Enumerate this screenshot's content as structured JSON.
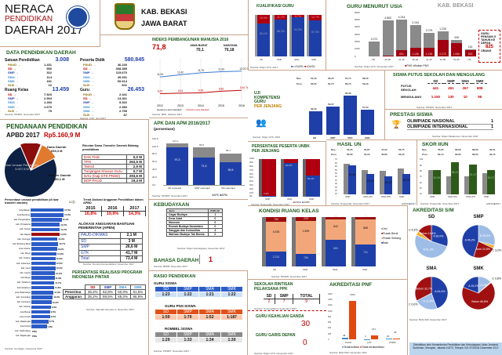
{
  "header": {
    "title1": "NERACA",
    "title2": "PENDIDIKAN",
    "title3": "DAERAH 2017",
    "region1": "KAB. BEKASI",
    "region2": "JAWA BARAT"
  },
  "data_pendidikan": {
    "title": "DATA PENDIDIKAN DAERAH",
    "satuan": {
      "label": "Satuan Pendidikan",
      "total": "3.008",
      "items": [
        [
          "PAUD →",
          "1.431"
        ],
        [
          "SD →",
          "950"
        ],
        [
          "SMP →",
          "322"
        ],
        [
          "SMA →",
          "114"
        ],
        [
          "SMK →",
          "181"
        ],
        [
          "SLB →",
          "10"
        ]
      ]
    },
    "peserta": {
      "label": "Peserta Didik",
      "total": "580.845",
      "items": [
        [
          "PAUD →",
          "46.240"
        ],
        [
          "SD →",
          "308.389"
        ],
        [
          "SMP →",
          "115.670"
        ],
        [
          "SMA →",
          "49.331"
        ],
        [
          "SMK →",
          "60.614"
        ],
        [
          "SLB →",
          "601"
        ]
      ]
    },
    "ruang": {
      "label": "Ruang Kelas",
      "total": "13.459",
      "items": [
        [
          "SD →",
          "7.523"
        ],
        [
          "SMP →",
          "2.904"
        ],
        [
          "SMA →",
          "1.283"
        ],
        [
          "SMK →",
          "1.670"
        ],
        [
          "SLB →",
          "79"
        ]
      ],
      "source": "Sumber: PDSPK, November 2017"
    },
    "guru": {
      "label": "Guru",
      "total": "26.453",
      "items": [
        [
          "PAUD →",
          "2.441"
        ],
        [
          "SD →",
          "13.461"
        ],
        [
          "SMP →",
          "5.322"
        ],
        [
          "SMA →",
          "2.383"
        ],
        [
          "SMK →",
          "2.759"
        ],
        [
          "SLB →",
          "87"
        ]
      ],
      "source": "Sumber: GTK, Juni 2017"
    }
  },
  "pendanaan": {
    "title": "PENDANAAN PENDIDIKAN",
    "apbd_label": "APBD 2017",
    "apbd_value": "Rp5.160,9 M",
    "pie": [
      {
        "label": "Non Urusan Pendidikan",
        "value": "3.927,5 M",
        "num": 3927.5,
        "color": "#0d2145"
      },
      {
        "label": "Dana Daerah",
        "value": "653,3 M",
        "num": 653.3,
        "color": "#8b0d0d"
      },
      {
        "label": "Transfer Daerah",
        "value": "580,1 M",
        "num": 580.1,
        "color": "#e07a2e"
      }
    ],
    "rincian_title": "Rincian Dana Transfer Daerah Bidang pendidikan",
    "rincian": [
      [
        "DAK Fisik",
        "0,0 M"
      ],
      [
        "TPG",
        "263,5 M"
      ],
      [
        "Tamsil",
        "2,9 M"
      ],
      [
        "Tunjangan Khusus Guru",
        "0,7 M"
      ],
      [
        "DAU (Gaji GTK PNSD)",
        "293,6 M"
      ],
      [
        "BOP PAUD",
        "19,4 M"
      ]
    ],
    "persentase_title": "Persentase urusan pendidikan (di luar transfer daerah)",
    "persentase": [
      [
        "kota Bekasi",
        17.5
      ],
      [
        "kota Bandung",
        17.3
      ],
      [
        "kab. Pangandaran",
        15.4
      ],
      [
        "kab. Purwakarta",
        14.5
      ],
      [
        "kab. Cianjur",
        14.5
      ],
      [
        "kab. Bekasi",
        14.3
      ],
      [
        "kab. Kuningan",
        13.3
      ],
      [
        "kab. Bandung Barat",
        13.7
      ],
      [
        "kota Cirebon",
        13.0
      ],
      [
        "kab. Bogor",
        12.8
      ],
      [
        "kab. Cirebon",
        12.3
      ],
      [
        "kab. Indramayu",
        12.3
      ],
      [
        "kab. Garut",
        12.3
      ],
      [
        "kab. Ciamis",
        12.0
      ],
      [
        "kota Bogor",
        11.8
      ],
      [
        "kab. Sukabumi",
        11.7
      ],
      [
        "kota Sukabumi",
        11.6
      ],
      [
        "kota Tasikmalaya",
        11.3
      ],
      [
        "kab. Sumedang",
        10.9
      ],
      [
        "kab. Karawang",
        10.3
      ],
      [
        "kab. Subang",
        9.9
      ],
      [
        "kota Banjar",
        9.5
      ],
      [
        "kota Cimahi",
        9.5
      ],
      [
        "kab. Majalengka",
        8.7
      ],
      [
        "kota Depok",
        7.8
      ],
      [
        "kab. Tasikmalaya",
        "PRG"
      ],
      [
        "kab. Majalengka",
        "PRG"
      ]
    ],
    "persentase_source": "Sumber: Kemdagri, November 2017",
    "trend_title": "Trend Alokasi Anggaran Pendidikan dalam APBD",
    "trend": [
      [
        "2015",
        "16,8%"
      ],
      [
        "2016",
        "19,9%"
      ],
      [
        "2017",
        "14,3%"
      ]
    ],
    "bantuan_title": "ALOKASI ANGGARAN BANTUAN PEMERINTAH (APBN)",
    "bantuan": [
      [
        "PAUD-DIKMAS",
        "2,1 M"
      ],
      [
        "SD",
        "3 M"
      ],
      [
        "SMP",
        "26,6 M"
      ],
      [
        "GTK",
        "41,7 M"
      ],
      [
        "Total",
        "73,4 M"
      ]
    ],
    "bantuan_source": "Sumber: Renstra Kemendikbud, November 2017",
    "pip_title": "PERSENTASE REALISASI PROGRAM INDONESIA PINTAR",
    "pip_head": [
      "SD",
      "SMP",
      "SMA",
      "SMK"
    ],
    "pip": [
      [
        "Penerima",
        "35,2%",
        "52,8%",
        "60,0%",
        "61,5%"
      ],
      [
        "Anggaran",
        "35,2%",
        "59,5%",
        "65,0%",
        "66,8%"
      ]
    ],
    "pip_source": "Sumber: dapodik semester 2, Desember 2017"
  },
  "ipm": {
    "title": "INDEKS PEMBANGUNAN MANUSIA 2016",
    "value": "71,8",
    "jabar_label": "JAWA BARAT",
    "jabar": "70,1",
    "nas_label": "NASIONAL",
    "nas": "70,18",
    "years": [
      "2012",
      "2013",
      "2014",
      "2015",
      "2016"
    ],
    "harapan": [
      11.05,
      11.42,
      11.75,
      11.93,
      12.03
    ],
    "harapan_labels": [
      "11,05",
      "11,42",
      "11,75",
      "11,93",
      "12,03 Tahun"
    ],
    "rerata": [
      8.25,
      8.34,
      8.38,
      8.66,
      8.81
    ],
    "rerata_labels": [
      "8,25",
      "8,34",
      "8,38",
      "8,66",
      "8,81 Tahun"
    ],
    "legend": [
      "Harapan Lama Sekolah",
      "Rerata Lama Sekolah"
    ],
    "source": "Sumber: BPS, Oktober 2017"
  },
  "apk": {
    "title": "APK DAN APM 2016/2017",
    "subtitle": "(persentase)",
    "categories": [
      "SD sederajat",
      "SMP sederajat",
      "SM sederajat"
    ],
    "apk": [
      107.1,
      96.8,
      82.4
    ],
    "apm": [
      97.3,
      71.9,
      59.5
    ],
    "apk_labels": [
      "107,1",
      "96,8",
      "82,4"
    ],
    "apm_labels": [
      "97,3",
      "71,9",
      "59,5"
    ],
    "ticks": [
      "0,0",
      "20,0",
      "40,0",
      "60,0",
      "80,0",
      "100,0",
      "120,0"
    ],
    "legend": [
      "APK",
      "APM"
    ],
    "source": "Sumber: PDSPK, November 2017"
  },
  "kebudayaan": {
    "title": "KEBUDAYAAN",
    "head": [
      "Jenis",
      "JUMLAH"
    ],
    "rows": [
      [
        "Cagar Budaya",
        "1"
      ],
      [
        "Desa Adat",
        "0"
      ],
      [
        "Museum",
        "0"
      ],
      [
        "Rumah Budaya Nusantara",
        "0"
      ],
      [
        "Sanggar dan Komunitas",
        "4"
      ],
      [
        "Warisan Budaya Tak Benda",
        "0"
      ]
    ],
    "source": "Sumber: Ditjen Kebudayaan, November 2017"
  },
  "bahasa": {
    "title": "BAHASA DAERAH",
    "value": "1",
    "source": "Sumber: BPPB, November 2017"
  },
  "rasio": {
    "title": "RASIO PENDIDIKAN",
    "head": [
      "SD",
      "SMP",
      "SMA",
      "SMK"
    ],
    "groups": [
      {
        "label": "GURU:SISWA",
        "values": [
          "1:23",
          "1:22",
          "1:21",
          "1:22"
        ]
      },
      {
        "label": "GURU PNS:SISWA",
        "values": [
          "1:59",
          "1:70",
          "1:52",
          "1:187"
        ]
      },
      {
        "label": "ROMBEL:SISWA",
        "values": [
          "1:29",
          "1:33",
          "1:34",
          "1:30"
        ]
      }
    ],
    "source": "Sumber: PDSPK, November 2017"
  },
  "kualifikasi": {
    "title": "KUALIFIKASI GURU",
    "categories": [
      "SD",
      "SMP",
      "SMA",
      "SMK"
    ],
    "ge": [
      80.1,
      88.3,
      94.3,
      87.3
    ],
    "lt": [
      19.9,
      11.7,
      5.7,
      12.7
    ],
    "ge_labels": [
      "80,1%",
      "88,3%",
      "94,3%",
      "87,3%"
    ],
    "lt_labels": [
      "19,9%",
      "11,7%",
      "5,7%",
      "12,7%"
    ],
    "legend": [
      ">=D4/S1",
      "<D4/S1"
    ],
    "source": "Sumber: Ditjen GTK, 2017"
  },
  "uji": {
    "title1": "UJI",
    "title2": "KOMPETENSI",
    "title3": "GURU",
    "title4": "PER JENJANG",
    "nas_label": "Nas.",
    "prov_label": "Prov.",
    "categories": [
      "SD",
      "SMP",
      "SMA",
      "SMK"
    ],
    "nas": [
      "54,33",
      "58,25",
      "61,74",
      "58,00"
    ],
    "prov": [
      "56,65",
      "60,70",
      "66,73",
      "59,29"
    ],
    "values": [
      56.03,
      59.07,
      66.38,
      57.03
    ],
    "labels": [
      "56,03",
      "59,07",
      "66,38",
      "57,03"
    ],
    "source": "Sumber: Ditjen GTK, 2016"
  },
  "unbk": {
    "title": "PERSENTASE PESERTA UNBK PER JENJANG",
    "categories": [
      "SMP",
      "SMA",
      "SMK"
    ],
    "unbk": [
      2.4,
      90.6,
      56.4
    ],
    "labels": [
      "2,4%",
      "90,6%",
      "56,4%"
    ],
    "ticks": [
      "0%",
      "10%",
      "20%",
      "30%",
      "40%",
      "50%",
      "60%",
      "70%",
      "80%",
      "90%",
      "100%"
    ],
    "legend": [
      "UNKP",
      "UNBK"
    ],
    "source": "Sumber: Puspendik, November 2017"
  },
  "kondisi": {
    "title": "KONDISI RUANG KELAS",
    "categories": [
      "SD",
      "SMP",
      "SMA",
      "SMK"
    ],
    "baik": [
      2232,
      756,
      683,
      731
    ],
    "sedang": [
      4535,
      1899,
      542,
      868
    ],
    "berat": [
      756,
      229,
      56,
      71
    ],
    "baik_l": [
      "2.232",
      "756",
      "683",
      "731"
    ],
    "sedang_l": [
      "4.535",
      "1.899",
      "542",
      "868"
    ],
    "berat_l": [
      "756",
      "229",
      "56",
      "71"
    ],
    "legend": [
      "Jml",
      "Rusak Berat",
      "Rusak Sedang",
      "Baik"
    ],
    "source": "Sumber: PDSPK, November 2017"
  },
  "rintisan": {
    "title": "SEKOLAH RINTISAN PELAKSANA PPK",
    "head": [
      "SD",
      "SMP",
      "TOTAL"
    ],
    "values": [
      "2",
      "7",
      "9"
    ],
    "source": "Sumber: Kemendikbud, September 2017"
  },
  "keahlian": {
    "title": "GURU KEAHLIAN GANDA",
    "value": "30"
  },
  "garis": {
    "title": "GURU GARIS DEPAN",
    "value": "0",
    "source": "Sumber: Ditjen GTK, November 2017"
  },
  "usia": {
    "title": "GURU MENURUT USIA",
    "region": "KAB. BEKASI",
    "categories": [
      "<26",
      "26-30",
      "31-35",
      "36-40",
      "41-45",
      "46-50",
      "51-55",
      ">55"
    ],
    "bukan": [
      2072,
      4863,
      4244,
      3154,
      2075,
      1205,
      436,
      116
    ],
    "pns": [
      3,
      61,
      831,
      1136,
      1136,
      2272,
      1840,
      825
    ],
    "bukan_l": [
      "2.072",
      "4.863",
      "4.244",
      "3.154",
      "2.075",
      "1.205",
      "436",
      "116"
    ],
    "pns_l": [
      "3",
      "61",
      "831",
      "1.136",
      "1.136",
      "2.272",
      "1.840",
      "825"
    ],
    "ticks": [
      "0",
      "1000",
      "2000",
      "3000",
      "4000",
      "5000",
      "6000"
    ],
    "legend": [
      "PNS",
      "Bukan PNS"
    ],
    "pensiun_text": "GURU PENSIUN 5 TAHUN KE DEPAN",
    "pensiun_value": "825",
    "pensiun_unit": "ORANG",
    "source": "Sumber: Ditjen GTK, November 2017"
  },
  "putus": {
    "title": "SISWA PUTUS SEKOLAH DAN MENGULANG",
    "head": [
      "SD",
      "SMP",
      "SMA",
      "SMK"
    ],
    "rows": [
      [
        "PUTUS SEKOLAH",
        "441",
        "451",
        "267",
        "808"
      ],
      [
        "MENGULANG",
        "1.150",
        "130",
        "10",
        "96"
      ]
    ],
    "source": "Sumber: PDSPK, November 2017"
  },
  "prestasi": {
    "title": "PRESTASI SISWA",
    "rows": [
      [
        "OLIMPIADE NASIONAL",
        "1"
      ],
      [
        "OLIMPIADE INTERNASIONAL",
        "1"
      ]
    ],
    "source": "Sumber: Ditjen Dikdasmen, November 2017"
  },
  "hasil_un": {
    "title": "HASIL UN",
    "categories": [
      "SMP",
      "SMA IPA",
      "SMA IPS",
      "SMK"
    ],
    "nas": [
      "54,25",
      "52,87",
      "47,93",
      "53,75"
    ],
    "prov": [
      "56,66",
      "52,20",
      "46,80",
      "53,20"
    ],
    "y2016": [
      64,
      55,
      54,
      57
    ],
    "y2017": [
      61.66,
      49.25,
      45.93,
      50.05
    ],
    "labels": [
      "61,66",
      "49,25",
      "45,93",
      "50,05"
    ],
    "ymin": 20,
    "ymax": 70,
    "ticks": [
      "20",
      "25",
      "30",
      "35",
      "40",
      "45",
      "50",
      "55",
      "60",
      "65",
      "70"
    ],
    "legend": [
      "2016",
      "2017"
    ],
    "source": "Sumber: Puspendik, November 2017"
  },
  "iiun": {
    "title": "SKOR IIUN",
    "categories": [
      "SMP",
      "SMA IPA",
      "SMA IPS",
      "SMK"
    ],
    "nas": [
      "76,65",
      "66,69",
      "68,65",
      "62,61"
    ],
    "prov": [
      "83,14",
      "93,80",
      "89,65",
      "93,72"
    ],
    "y2016": [
      82,
      72,
      71,
      77
    ],
    "y2017": [
      82.63,
      96.01,
      91.47,
      82.07
    ],
    "labels": [
      "82,63",
      "96,01",
      "91,47",
      "82,07"
    ],
    "ymin": 40,
    "ymax": 100,
    "ticks": [
      "40",
      "50",
      "60",
      "70",
      "80",
      "90",
      "100"
    ],
    "legend": [
      "2016",
      "2017"
    ],
    "source": "Sumber: Puspendik, November 2017"
  },
  "akreditasi": {
    "title": "AKREDITASI S/M",
    "pies": [
      {
        "name": "SD",
        "slices": [
          [
            "A",
            30.0,
            "#1f3fa8"
          ],
          [
            "B",
            51.3,
            "#9ebde6"
          ],
          [
            "C",
            4.3,
            "#f0b030"
          ],
          [
            "Belum",
            14.4,
            "#a01010"
          ]
        ],
        "labels": [
          "A 30,0%",
          "B 51,3%",
          "C 4,3%",
          "Belum 14,4%"
        ]
      },
      {
        "name": "SMP",
        "slices": [
          [
            "B",
            28.9,
            "#9ebde6"
          ],
          [
            "C",
            3.2,
            "#f0b030"
          ],
          [
            "Belum",
            22.8,
            "#a01010"
          ],
          [
            "A",
            45.2,
            "#1f3fa8"
          ]
        ],
        "labels": [
          "B 28,9%",
          "C 3,2%",
          "Belum 22,8%",
          "A 45,2%"
        ]
      },
      {
        "name": "SMA",
        "slices": [
          [
            "A",
            44.4,
            "#1f3fa8"
          ],
          [
            "B",
            22.8,
            "#9ebde6"
          ],
          [
            "C",
            0.0,
            "#f0b030"
          ],
          [
            "Belum",
            32.7,
            "#a01010"
          ]
        ],
        "labels": [
          "A 44,4%",
          "B 22,8%",
          "C 0,0%",
          "Belum 32,7%"
        ]
      },
      {
        "name": "SMK",
        "slices": [
          [
            "B",
            13.3,
            "#9ebde6"
          ],
          [
            "C",
            0.8,
            "#f0b030"
          ],
          [
            "Belum",
            66.8,
            "#a01010"
          ],
          [
            "A",
            19.2,
            "#1f3fa8"
          ]
        ],
        "labels": [
          "B 13,3%",
          "C 0,8%",
          "Belum 66,8%",
          "A 19,2%"
        ]
      }
    ],
    "source": "Sumber: BAN-S/M, Desember 2017"
  },
  "pnf": {
    "title": "AKREDITASI PNF",
    "categories": [
      "PAUD",
      "LKP",
      "PKBM"
    ],
    "ter": [
      48,
      3,
      20
    ],
    "tidak": [
      1363,
      151,
      28
    ],
    "ter_l": [
      "48",
      "3",
      "20"
    ],
    "tidak_l": [
      "1363",
      "151",
      "28"
    ],
    "ticks": [
      "0",
      "200",
      "400",
      "600",
      "800",
      "1000",
      "1200",
      "1400",
      "1600"
    ],
    "legend": [
      "Terakreditasi",
      "Tidak terakreditasi"
    ],
    "source": "Sumber: BAN PNF, November 2017"
  },
  "footer": {
    "text": "Diterbitkan oleh Kementerian Pendidikan dan Kebudayaan Jalan Jenderal Sudirman, Senayan, Jakarta 10270, Telepon 021 5733244 Desember 2017"
  },
  "colors": {
    "blue": "#1f3fa8",
    "red": "#c00000",
    "gray": "#888888",
    "green": "#2d5a1a",
    "orange": "#f2a77a",
    "darkred": "#8b0d0d"
  }
}
